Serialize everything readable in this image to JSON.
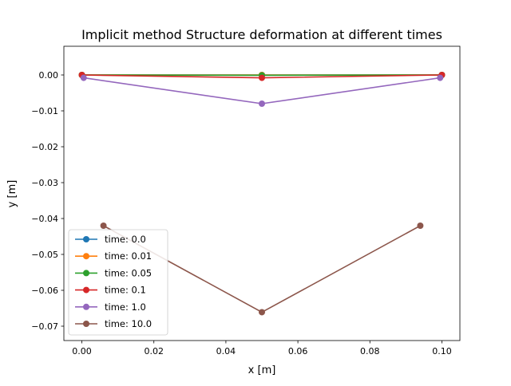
{
  "chart_data": {
    "type": "line",
    "title": "Implicit method Structure deformation at different times",
    "xlabel": "x [m]",
    "ylabel": "y [m]",
    "xlim": [
      -0.005,
      0.105
    ],
    "ylim": [
      -0.074,
      0.008
    ],
    "xticks": [
      0.0,
      0.02,
      0.04,
      0.06,
      0.08,
      0.1
    ],
    "xtick_labels": [
      "0.00",
      "0.02",
      "0.04",
      "0.06",
      "0.08",
      "0.10"
    ],
    "yticks": [
      0.0,
      -0.01,
      -0.02,
      -0.03,
      -0.04,
      -0.05,
      -0.06,
      -0.07
    ],
    "ytick_labels": [
      "0.00",
      "−0.01",
      "−0.02",
      "−0.03",
      "−0.04",
      "−0.05",
      "−0.06",
      "−0.07"
    ],
    "grid": false,
    "legend_position": "lower-left",
    "series": [
      {
        "name": "time: 0.0",
        "color": "#1f77b4",
        "x": [
          0.0,
          0.05,
          0.1
        ],
        "y": [
          0.0,
          0.0,
          0.0
        ]
      },
      {
        "name": "time: 0.01",
        "color": "#ff7f0e",
        "x": [
          0.0,
          0.05,
          0.1
        ],
        "y": [
          0.0,
          0.0,
          0.0
        ]
      },
      {
        "name": "time: 0.05",
        "color": "#2ca02c",
        "x": [
          0.0,
          0.05,
          0.1
        ],
        "y": [
          0.0,
          -0.0001,
          0.0
        ]
      },
      {
        "name": "time: 0.1",
        "color": "#d62728",
        "x": [
          0.0,
          0.05,
          0.1
        ],
        "y": [
          0.0,
          -0.0008,
          0.0
        ]
      },
      {
        "name": "time: 1.0",
        "color": "#9467bd",
        "x": [
          0.0005,
          0.05,
          0.0995
        ],
        "y": [
          -0.0008,
          -0.008,
          -0.0008
        ]
      },
      {
        "name": "time: 10.0",
        "color": "#8c564b",
        "x": [
          0.006,
          0.05,
          0.094
        ],
        "y": [
          -0.042,
          -0.0661,
          -0.042
        ]
      }
    ]
  }
}
